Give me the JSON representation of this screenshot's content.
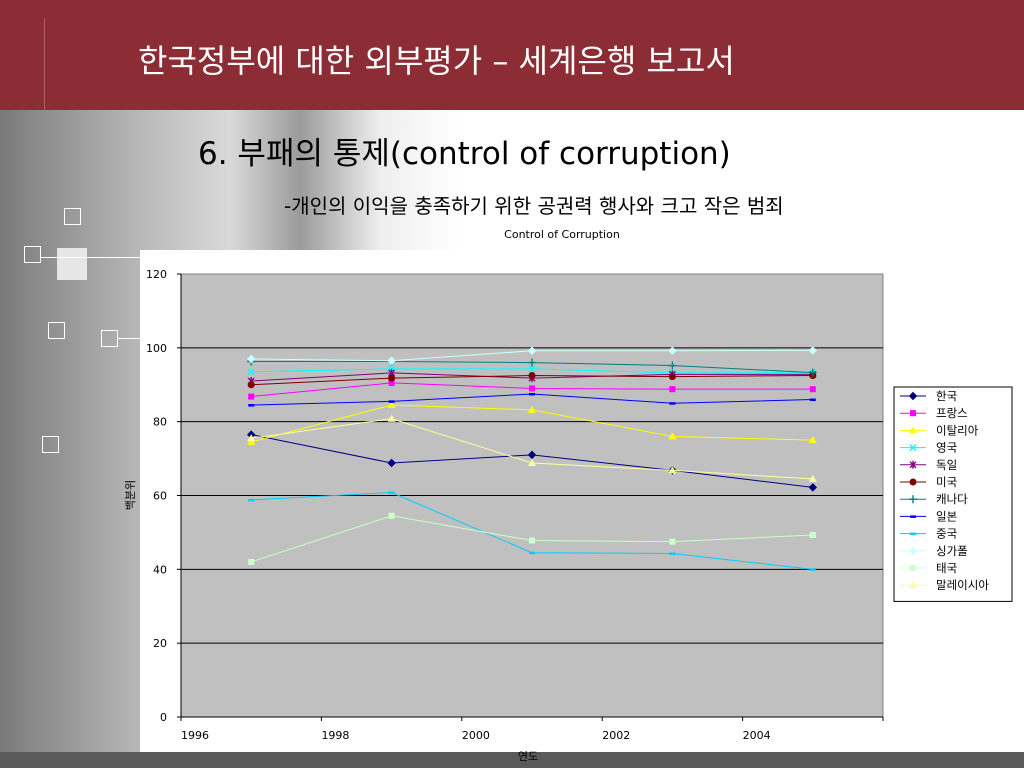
{
  "header": {
    "title": "한국정부에 대한 외부평가 – 세계은행 보고서"
  },
  "slide": {
    "subtitle": "6. 부패의 통제(control of corruption)",
    "description": "-개인의 이익을 충족하기 위한 공권력 행사와 크고 작은 범죄"
  },
  "chart_data": {
    "type": "line",
    "title": "Control of Corruption",
    "xlabel": "연도",
    "ylabel": "백분위",
    "categories": [
      "1996",
      "1998",
      "2000",
      "2002",
      "2004"
    ],
    "ylim": [
      0,
      120
    ],
    "yticks": [
      0,
      20,
      40,
      60,
      80,
      100,
      120
    ],
    "grid": true,
    "legend_position": "right",
    "series": [
      {
        "name": "한국",
        "color": "#000080",
        "marker": "diamond",
        "values": [
          76.5,
          68.8,
          71.0,
          66.8,
          62.2
        ]
      },
      {
        "name": "프랑스",
        "color": "#ff00ff",
        "marker": "square",
        "values": [
          86.8,
          90.5,
          89.0,
          88.8,
          88.8
        ]
      },
      {
        "name": "이탈리아",
        "color": "#ffff00",
        "marker": "triangle",
        "values": [
          74.5,
          84.5,
          83.2,
          76.0,
          75.0
        ]
      },
      {
        "name": "영국",
        "color": "#00ffff",
        "marker": "x",
        "values": [
          93.5,
          94.3,
          94.3,
          93.2,
          93.3
        ]
      },
      {
        "name": "독일",
        "color": "#800080",
        "marker": "star",
        "values": [
          91.0,
          93.2,
          91.8,
          92.8,
          92.8
        ]
      },
      {
        "name": "미국",
        "color": "#800000",
        "marker": "circle",
        "values": [
          90.0,
          91.8,
          92.5,
          92.2,
          92.5
        ]
      },
      {
        "name": "캐나다",
        "color": "#008080",
        "marker": "plus",
        "values": [
          96.3,
          96.3,
          96.0,
          95.2,
          93.3
        ]
      },
      {
        "name": "일본",
        "color": "#0000ff",
        "marker": "dash",
        "values": [
          84.5,
          85.5,
          87.5,
          85.0,
          86.0
        ]
      },
      {
        "name": "중국",
        "color": "#00ccff",
        "marker": "dash",
        "values": [
          58.8,
          60.8,
          44.5,
          44.3,
          40.0
        ]
      },
      {
        "name": "싱가폴",
        "color": "#ccffff",
        "marker": "diamond",
        "values": [
          97.0,
          96.5,
          99.2,
          99.2,
          99.3
        ]
      },
      {
        "name": "태국",
        "color": "#ccffcc",
        "marker": "square",
        "values": [
          42.0,
          54.5,
          47.8,
          47.5,
          49.3
        ]
      },
      {
        "name": "말레이시아",
        "color": "#ffff99",
        "marker": "triangle",
        "values": [
          75.5,
          80.8,
          68.8,
          66.8,
          64.5
        ]
      }
    ]
  }
}
